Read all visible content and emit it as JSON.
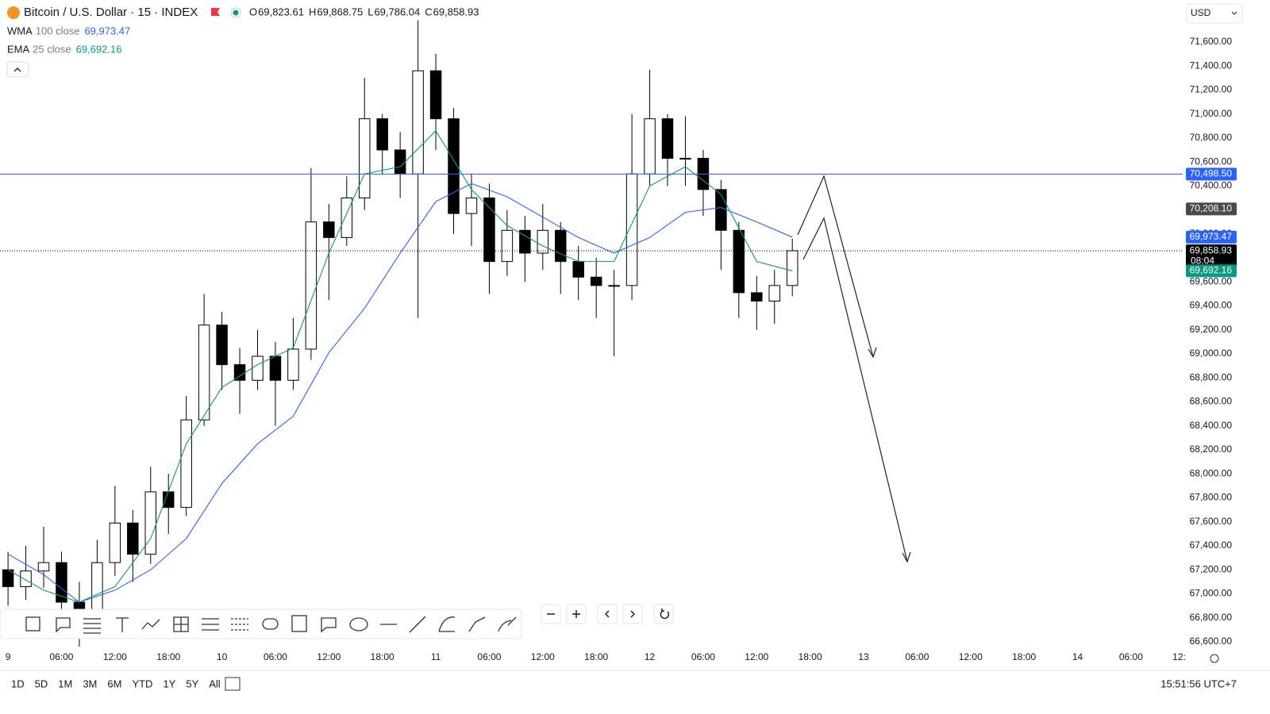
{
  "header": {
    "symbol": "Bitcoin / U.S. Dollar · 15 · INDEX",
    "ohlc": [
      {
        "key": "O",
        "value": "69,823.61"
      },
      {
        "key": "H",
        "value": "69,868.75"
      },
      {
        "key": "L",
        "value": "69,786.04"
      },
      {
        "key": "C",
        "value": "69,858.93"
      }
    ],
    "indicators": [
      {
        "name": "WMA",
        "params": "100 close",
        "value": "69,973.47",
        "color": "#2962ff"
      },
      {
        "name": "EMA",
        "params": "25 close",
        "value": "69,692.16",
        "color": "#089981"
      }
    ],
    "currency": "USD"
  },
  "chart_data": {
    "type": "candlestick",
    "x": [
      0,
      2,
      4,
      6,
      8,
      10,
      12,
      14,
      16,
      18,
      20,
      22,
      24,
      26,
      28,
      30,
      32,
      34,
      36,
      38,
      40,
      42,
      44,
      46,
      48,
      50,
      52,
      54,
      56,
      58,
      60,
      62,
      64,
      66,
      68,
      70,
      72,
      74,
      76,
      78,
      80,
      82,
      84,
      86,
      88
    ],
    "open": [
      67200,
      67060,
      67190,
      67260,
      66930,
      66800,
      67260,
      67590,
      67330,
      67850,
      67720,
      68450,
      69240,
      68910,
      68780,
      68980,
      68780,
      69040,
      70100,
      69970,
      70300,
      70960,
      70700,
      70500,
      71360,
      70960,
      70170,
      70300,
      69770,
      70030,
      69840,
      70030,
      69770,
      69640,
      69570,
      69570,
      70500,
      70960,
      70630,
      70630,
      70370,
      70030,
      69510,
      69440,
      69570
    ],
    "high": [
      67350,
      67400,
      67560,
      67350,
      67100,
      67450,
      67900,
      67700,
      68060,
      68000,
      68650,
      69500,
      69350,
      69050,
      69200,
      69100,
      69300,
      70550,
      70250,
      70480,
      71300,
      71000,
      70850,
      71780,
      71500,
      71050,
      70500,
      70420,
      70200,
      70150,
      70250,
      70100,
      69900,
      69800,
      69700,
      71000,
      71370,
      71000,
      70980,
      70700,
      70450,
      70100,
      69650,
      69700,
      69960
    ],
    "low": [
      66900,
      66950,
      67050,
      66700,
      66550,
      66700,
      67150,
      67100,
      67250,
      67500,
      67650,
      68400,
      68700,
      68500,
      68700,
      68400,
      68700,
      68950,
      69450,
      69900,
      70200,
      70500,
      70300,
      69300,
      70700,
      70000,
      69900,
      69500,
      69650,
      69600,
      69700,
      69500,
      69450,
      69300,
      68980,
      69450,
      70400,
      70400,
      70400,
      70150,
      69700,
      69300,
      69200,
      69250,
      69480
    ],
    "close": [
      67060,
      67190,
      67260,
      66930,
      66800,
      67260,
      67590,
      67330,
      67850,
      67720,
      68450,
      69240,
      68910,
      68780,
      68980,
      68780,
      69040,
      70100,
      69970,
      70300,
      70960,
      70700,
      70500,
      71360,
      70960,
      70170,
      70300,
      69770,
      70030,
      69840,
      70030,
      69770,
      69640,
      69570,
      69570,
      70500,
      70960,
      70630,
      70630,
      70370,
      70030,
      69510,
      69440,
      69570,
      69860
    ],
    "up_color": "#ffffff",
    "down_color": "#000000",
    "wick_color": "#000000",
    "series": [
      {
        "name": "WMA",
        "color": "#2962ff",
        "x": [
          0,
          4,
          8,
          12,
          16,
          20,
          24,
          28,
          32,
          36,
          40,
          44,
          48,
          52,
          56,
          60,
          64,
          68,
          72,
          76,
          80,
          84,
          88
        ],
        "values": [
          67330,
          67160,
          66930,
          67030,
          67200,
          67460,
          67920,
          68250,
          68480,
          69010,
          69380,
          69840,
          70270,
          70420,
          70310,
          70140,
          69970,
          69840,
          69970,
          70180,
          70220,
          70100,
          69973
        ]
      },
      {
        "name": "EMA",
        "color": "#089981",
        "x": [
          0,
          4,
          8,
          12,
          16,
          20,
          24,
          28,
          32,
          36,
          40,
          44,
          48,
          52,
          56,
          60,
          64,
          68,
          72,
          76,
          80,
          84,
          88
        ],
        "values": [
          67200,
          67030,
          66930,
          67060,
          67460,
          68250,
          68720,
          68910,
          69050,
          69840,
          70500,
          70560,
          70860,
          70370,
          70070,
          69900,
          69770,
          69770,
          70400,
          70560,
          70330,
          69770,
          69692
        ]
      }
    ],
    "xlim": [
      -0.9,
      131.8
    ],
    "ylim": [
      66560,
      71950
    ],
    "xticks": [
      {
        "value": 0,
        "label": "9"
      },
      {
        "value": 6,
        "label": "06:00"
      },
      {
        "value": 12,
        "label": "12:00"
      },
      {
        "value": 18,
        "label": "18:00"
      },
      {
        "value": 24,
        "label": "10"
      },
      {
        "value": 30,
        "label": "06:00"
      },
      {
        "value": 36,
        "label": "12:00"
      },
      {
        "value": 42,
        "label": "18:00"
      },
      {
        "value": 48,
        "label": "11"
      },
      {
        "value": 54,
        "label": "06:00"
      },
      {
        "value": 60,
        "label": "12:00"
      },
      {
        "value": 66,
        "label": "18:00"
      },
      {
        "value": 72,
        "label": "12"
      },
      {
        "value": 78,
        "label": "06:00"
      },
      {
        "value": 84,
        "label": "12:00"
      },
      {
        "value": 90,
        "label": "18:00"
      },
      {
        "value": 96,
        "label": "13"
      },
      {
        "value": 102,
        "label": "06:00"
      },
      {
        "value": 108,
        "label": "12:00"
      },
      {
        "value": 114,
        "label": "18:00"
      },
      {
        "value": 120,
        "label": "14"
      },
      {
        "value": 126,
        "label": "06:00"
      },
      {
        "value": 131.4,
        "label": "12:"
      }
    ],
    "yticks": [
      {
        "value": 71600,
        "label": "71,600.00"
      },
      {
        "value": 71400,
        "label": "71,400.00"
      },
      {
        "value": 71200,
        "label": "71,200.00"
      },
      {
        "value": 71000,
        "label": "71,000.00"
      },
      {
        "value": 70800,
        "label": "70,800.00"
      },
      {
        "value": 70600,
        "label": "70,600.00"
      },
      {
        "value": 70400,
        "label": "70,400.00"
      },
      {
        "value": 70200,
        "label": "70,200.00"
      },
      {
        "value": 70000,
        "label": "70,000.00"
      },
      {
        "value": 69800,
        "label": "69,800.00"
      },
      {
        "value": 69600,
        "label": "69,600.00"
      },
      {
        "value": 69400,
        "label": "69,400.00"
      },
      {
        "value": 69200,
        "label": "69,200.00"
      },
      {
        "value": 69000,
        "label": "69,000.00"
      },
      {
        "value": 68800,
        "label": "68,800.00"
      },
      {
        "value": 68600,
        "label": "68,600.00"
      },
      {
        "value": 68400,
        "label": "68,400.00"
      },
      {
        "value": 68200,
        "label": "68,200.00"
      },
      {
        "value": 68000,
        "label": "68,000.00"
      },
      {
        "value": 67800,
        "label": "67,800.00"
      },
      {
        "value": 67600,
        "label": "67,600.00"
      },
      {
        "value": 67400,
        "label": "67,400.00"
      },
      {
        "value": 67200,
        "label": "67,200.00"
      },
      {
        "value": 67000,
        "label": "67,000.00"
      },
      {
        "value": 66800,
        "label": "66,800.00"
      },
      {
        "value": 66600,
        "label": "66,600.00"
      }
    ],
    "price_tags": [
      {
        "value": 70498.5,
        "label": "70,498.50",
        "color": "#2962ff",
        "line": "solid"
      },
      {
        "value": 70208.1,
        "label": "70,208.10",
        "color": "#4a4a4a"
      },
      {
        "value": 69973.47,
        "label": "69,973.47",
        "color": "#2962ff"
      },
      {
        "value": 69858.93,
        "label": "69,858.93",
        "color": "#000000",
        "line": "dotted",
        "countdown": "08:04"
      },
      {
        "value": 69692.16,
        "label": "69,692.16",
        "color": "#089981"
      }
    ]
  },
  "footer": {
    "ranges": [
      "1D",
      "5D",
      "1M",
      "3M",
      "6M",
      "YTD",
      "1Y",
      "5Y",
      "All"
    ],
    "clock": "15:51:56 UTC+7"
  }
}
